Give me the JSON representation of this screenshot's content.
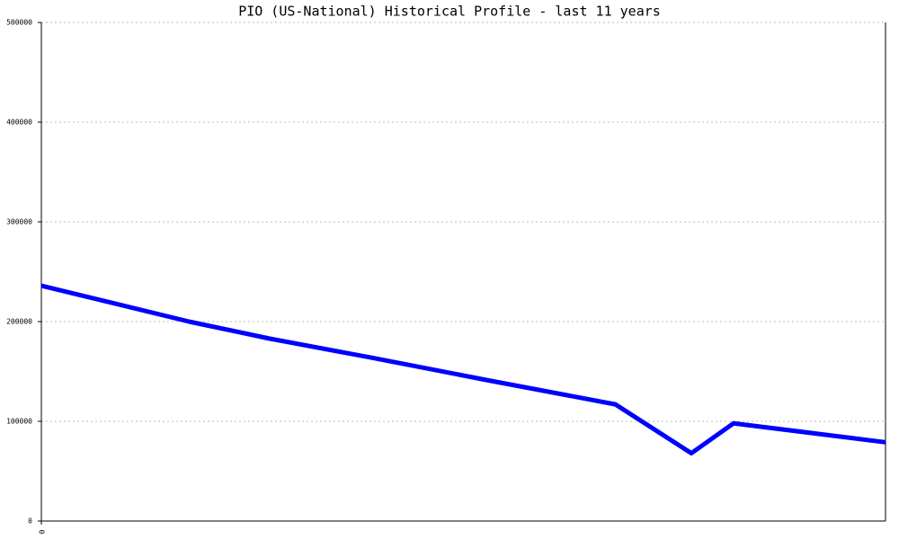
{
  "chart_data": {
    "type": "line",
    "title": "PIO (US-National) Historical Profile - last 11 years",
    "x": [
      0,
      1.75,
      2.7,
      3.9,
      5.3,
      6.8,
      7.7,
      8.2,
      10
    ],
    "series": [
      {
        "color": "#0000ff",
        "values": [
          236000,
          200000,
          183000,
          164000,
          141000,
          117000,
          68000,
          98000,
          79000
        ]
      }
    ],
    "xlim": [
      0,
      10
    ],
    "xticks": [
      0
    ],
    "ylim": [
      0,
      500000
    ],
    "yticks": [
      0,
      100000,
      200000,
      300000,
      400000,
      500000
    ],
    "grid": true
  }
}
